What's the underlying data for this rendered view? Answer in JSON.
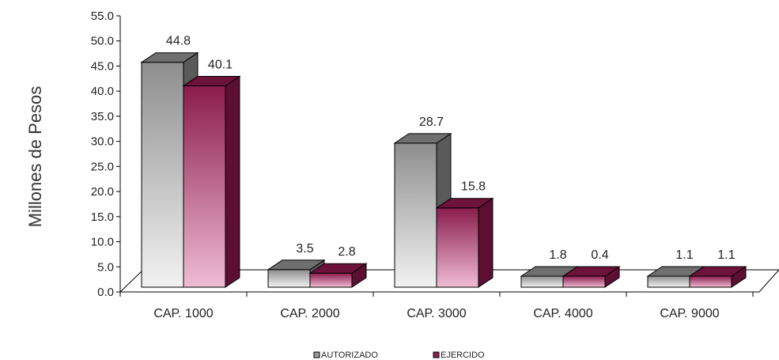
{
  "chart_data": {
    "type": "bar",
    "subtype": "3d-clustered",
    "categories": [
      "CAP. 1000",
      "CAP. 2000",
      "CAP. 3000",
      "CAP. 4000",
      "CAP. 9000"
    ],
    "series": [
      {
        "name": "AUTORIZADO",
        "values": [
          44.8,
          3.5,
          28.7,
          1.8,
          1.1
        ],
        "labels": [
          "44.8",
          "3.5",
          "28.7",
          "1.8",
          "1.1"
        ],
        "color": "#9a9a9a"
      },
      {
        "name": "EJERCIDO",
        "values": [
          40.1,
          2.8,
          15.8,
          0.4,
          1.1
        ],
        "labels": [
          "40.1",
          "2.8",
          "15.8",
          "0.4",
          "1.1"
        ],
        "color": "#8b1f4f"
      }
    ],
    "ylabel": "Millones de Pesos",
    "xlabel": "",
    "ylim": [
      0,
      55
    ],
    "yticks": [
      "0.0",
      "5.0",
      "10.0",
      "15.0",
      "20.0",
      "25.0",
      "30.0",
      "35.0",
      "40.0",
      "45.0",
      "50.0",
      "55.0"
    ],
    "grid": false,
    "legend": "bottom"
  }
}
